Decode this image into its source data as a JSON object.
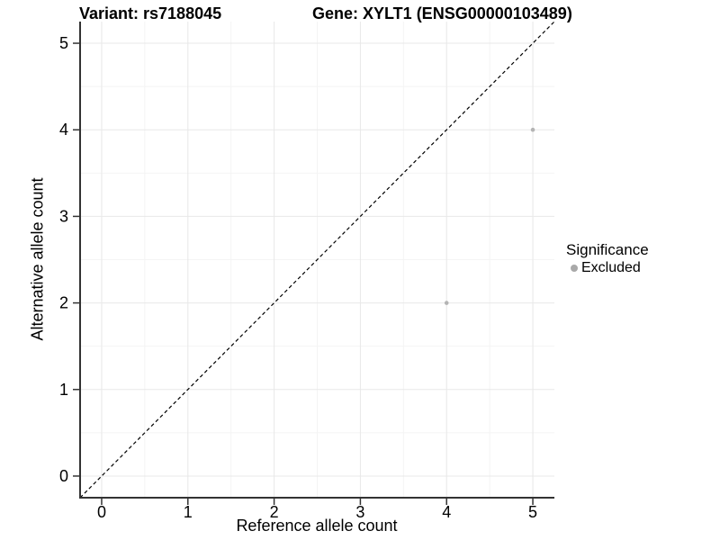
{
  "chart_data": {
    "type": "scatter",
    "title_left": "Variant: rs7188045",
    "title_right": "Gene: XYLT1 (ENSG00000103489)",
    "xlabel": "Reference allele count",
    "ylabel": "Alternative allele count",
    "xlim": [
      -0.25,
      5.25
    ],
    "ylim": [
      -0.25,
      5.25
    ],
    "xticks": [
      0,
      1,
      2,
      3,
      4,
      5
    ],
    "yticks": [
      0,
      1,
      2,
      3,
      4,
      5
    ],
    "minor_step": 0.5,
    "grid": "major+minor",
    "identity_line": {
      "style": "dashed",
      "slope": 1,
      "intercept": 0,
      "color": "#000000"
    },
    "series": [
      {
        "name": "Excluded",
        "color": "#b4b4b4",
        "points": [
          [
            5,
            4
          ],
          [
            4,
            2
          ]
        ]
      }
    ],
    "legend": {
      "title": "Significance",
      "position": "right",
      "items": [
        {
          "label": "Excluded",
          "color": "#a9a9a9",
          "marker": "circle"
        }
      ]
    },
    "colors": {
      "background": "#ffffff",
      "grid_major": "#e8e8e8",
      "grid_minor": "#f4f4f4",
      "axis_line": "#333333",
      "tick_text": "#000000"
    }
  }
}
